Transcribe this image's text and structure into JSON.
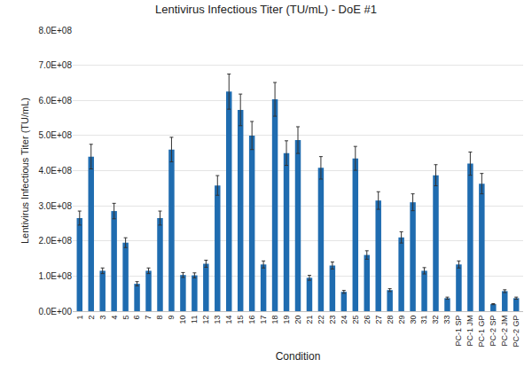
{
  "chart_data": {
    "type": "bar",
    "title": "Lentivirus Infectious Titer (TU/mL) - DoE #1",
    "x_label": "Condition",
    "y_label": "Lentivirus Infectious Titer (TU/mL)",
    "categories": [
      "1",
      "2",
      "3",
      "4",
      "5",
      "6",
      "7",
      "8",
      "9",
      "10",
      "11",
      "12",
      "13",
      "14",
      "15",
      "16",
      "17",
      "18",
      "19",
      "20",
      "21",
      "22",
      "23",
      "24",
      "25",
      "26",
      "27",
      "28",
      "29",
      "30",
      "31",
      "32",
      "33",
      "PC-1 SP",
      "PC-1 JM",
      "PC-1 GP",
      "PC-2 SP",
      "PC-2 JM",
      "PC-2 GP"
    ],
    "values": [
      265000000,
      440000000,
      115000000,
      285000000,
      195000000,
      78000000,
      115000000,
      265000000,
      460000000,
      103000000,
      102000000,
      135000000,
      358000000,
      625000000,
      573000000,
      500000000,
      133000000,
      603000000,
      450000000,
      487000000,
      95000000,
      408000000,
      130000000,
      55000000,
      435000000,
      160000000,
      315000000,
      60000000,
      210000000,
      310000000,
      115000000,
      387000000,
      37000000,
      133000000,
      420000000,
      363000000,
      20000000,
      57000000,
      37000000
    ],
    "errors": [
      20000000,
      35000000,
      8000000,
      22000000,
      14000000,
      6000000,
      8000000,
      20000000,
      35000000,
      7000000,
      7000000,
      10000000,
      28000000,
      50000000,
      45000000,
      40000000,
      10000000,
      48000000,
      35000000,
      38000000,
      7000000,
      32000000,
      10000000,
      4000000,
      34000000,
      12000000,
      25000000,
      4000000,
      16000000,
      24000000,
      9000000,
      30000000,
      3000000,
      10000000,
      33000000,
      29000000,
      1500000,
      4000000,
      3000000
    ],
    "color": "#1f6cb0",
    "ylim": [
      0,
      800000000
    ],
    "yticks": [
      {
        "value": 0,
        "label": "0.0E+00"
      },
      {
        "value": 100000000,
        "label": "1.0E+08"
      },
      {
        "value": 200000000,
        "label": "2.0E+08"
      },
      {
        "value": 300000000,
        "label": "3.0E+08"
      },
      {
        "value": 400000000,
        "label": "4.0E+08"
      },
      {
        "value": 500000000,
        "label": "5.0E+08"
      },
      {
        "value": 600000000,
        "label": "6.0E+08"
      },
      {
        "value": 700000000,
        "label": "7.0E+08"
      },
      {
        "value": 800000000,
        "label": "8.0E+08"
      }
    ],
    "grid": true
  }
}
